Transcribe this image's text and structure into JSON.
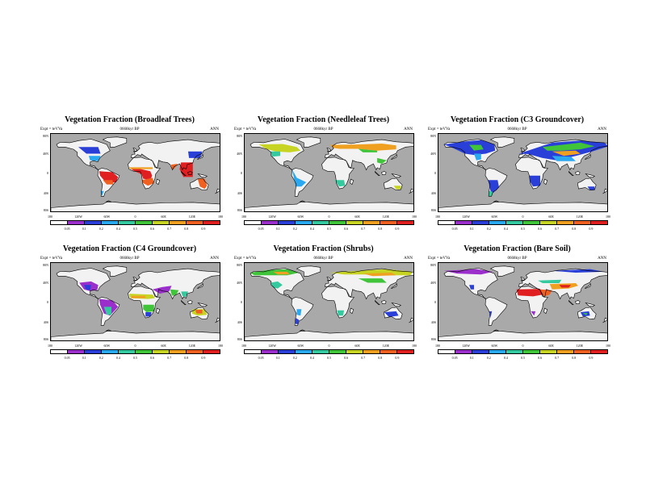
{
  "panels": [
    {
      "title": "Vegetation Fraction (Broadleaf Trees)",
      "expt": "Expt = teVVa",
      "period": "0668kyr BP",
      "season": "ANN",
      "type": "broadleaf"
    },
    {
      "title": "Vegetation Fraction (Needleleaf Trees)",
      "expt": "Expt = teVVa",
      "period": "0668kyr BP",
      "season": "ANN",
      "type": "needleleaf"
    },
    {
      "title": "Vegetation Fraction (C3 Groundcover)",
      "expt": "Expt = teVVa",
      "period": "0668kyr BP",
      "season": "ANN",
      "type": "c3"
    },
    {
      "title": "Vegetation Fraction (C4 Groundcover)",
      "expt": "Expt = teVVa",
      "period": "0668kyr BP",
      "season": "ANN",
      "type": "c4"
    },
    {
      "title": "Vegetation Fraction (Shrubs)",
      "expt": "Expt = teVVa",
      "period": "0668kyr BP",
      "season": "ANN",
      "type": "shrubs"
    },
    {
      "title": "Vegetation Fraction (Bare Soil)",
      "expt": "Expt = teVVa",
      "period": "0668kyr BP",
      "season": "ANN",
      "type": "baresoil"
    }
  ],
  "lat_labels": [
    "80N",
    "40N",
    "0",
    "40S",
    "80S"
  ],
  "lon_labels": [
    "180",
    "120W",
    "60W",
    "0",
    "60E",
    "120E",
    "180"
  ],
  "colorbar": {
    "labels": [
      "0.05",
      "0.1",
      "0.2",
      "0.4",
      "0.5",
      "0.6",
      "0.7",
      "0.8",
      "0.9"
    ],
    "colors": [
      "#ffffff",
      "#9b2fcc",
      "#2a3fd8",
      "#2aa8f0",
      "#35c9a0",
      "#3fc43a",
      "#c8d424",
      "#f0a020",
      "#f06020",
      "#e02020"
    ]
  },
  "colors": {
    "ocean": "#a9a9a9",
    "land": "#f2f2f2"
  }
}
